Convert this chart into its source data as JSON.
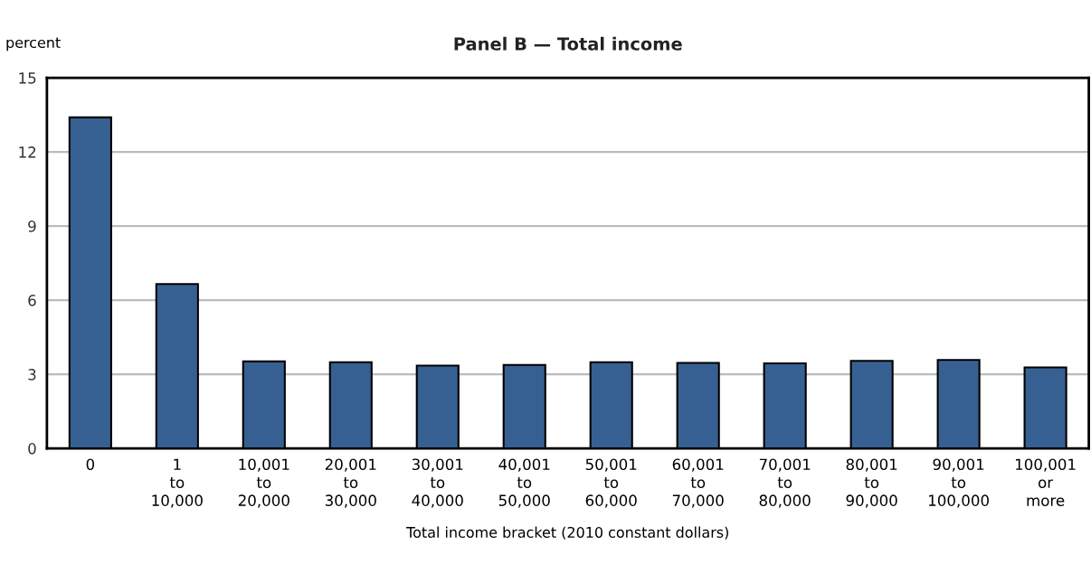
{
  "chart_data": {
    "type": "bar",
    "title": "Panel B — Total income",
    "ylabel": "percent",
    "xlabel": "Total income bracket (2010 constant dollars)",
    "categories": [
      "0",
      "1\nto\n10,000",
      "10,001\nto\n20,000",
      "20,001\nto\n30,000",
      "30,001\nto\n40,000",
      "40,001\nto\n50,000",
      "50,001\nto\n60,000",
      "60,001\nto\n70,000",
      "70,001\nto\n80,000",
      "80,001\nto\n90,000",
      "90,001\nto\n100,000",
      "100,001\nor\nmore"
    ],
    "values": [
      13.4,
      6.65,
      3.52,
      3.49,
      3.35,
      3.38,
      3.49,
      3.46,
      3.44,
      3.54,
      3.58,
      3.28
    ],
    "color": "#376092",
    "ylim": [
      0,
      15
    ],
    "yticks": [
      0,
      3,
      6,
      9,
      12,
      15
    ],
    "grid": "y"
  }
}
